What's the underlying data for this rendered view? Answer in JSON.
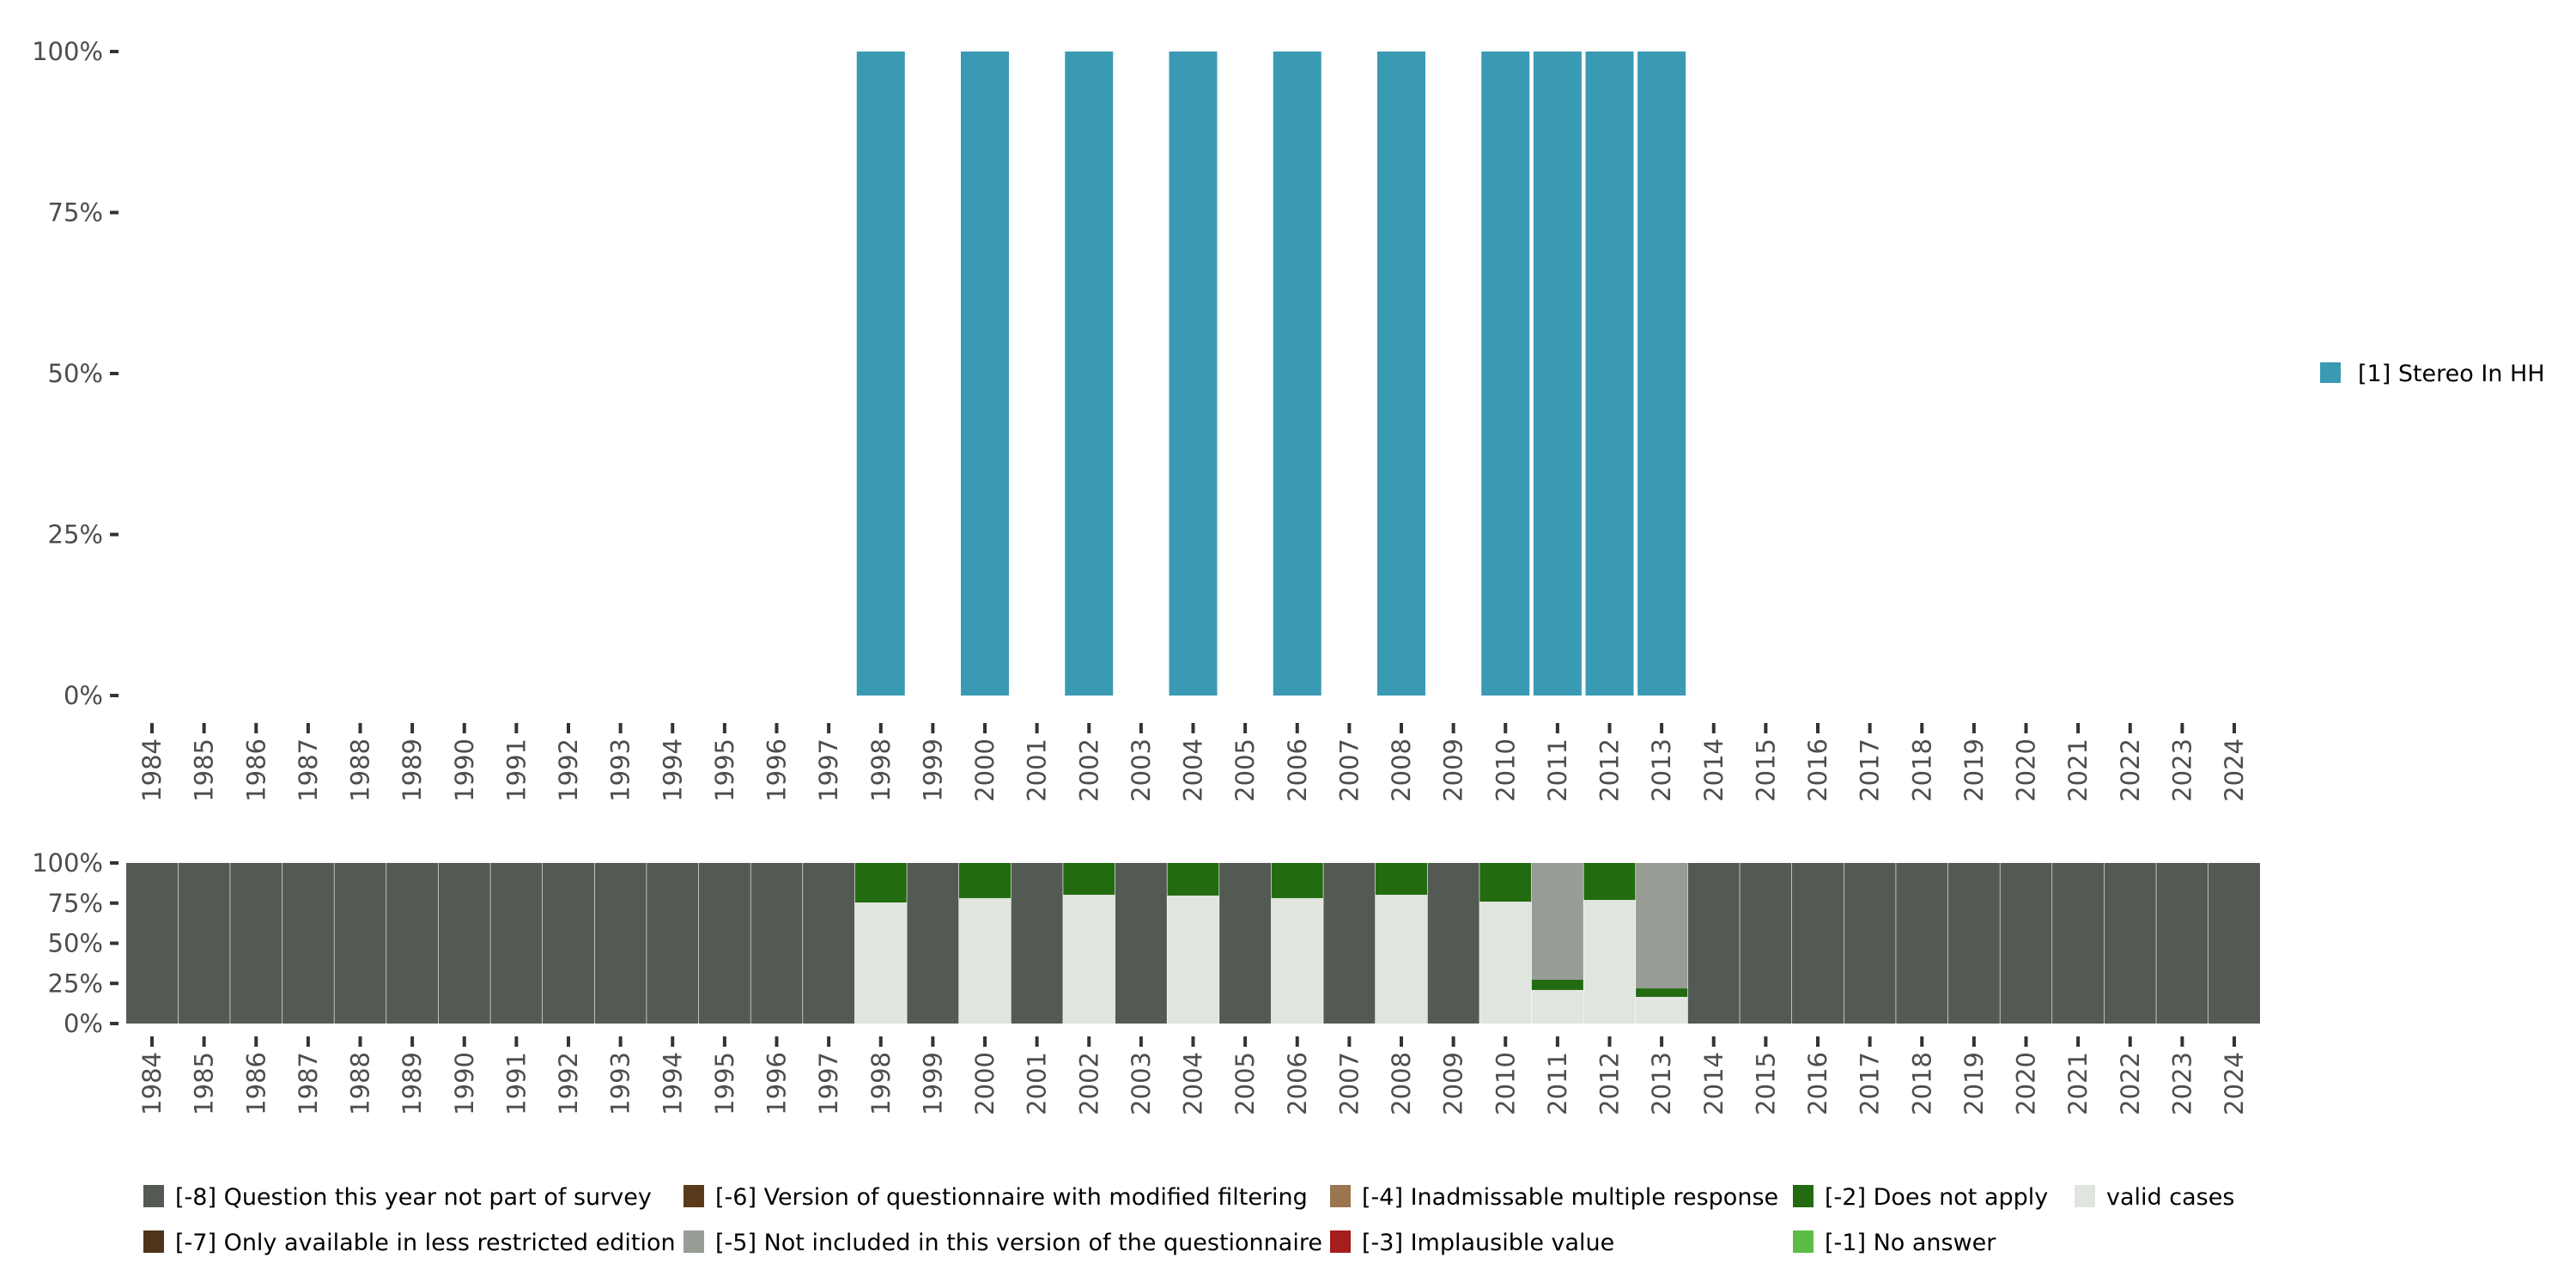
{
  "chart_data": [
    {
      "type": "bar",
      "title": "",
      "xlabel": "",
      "ylabel": "",
      "ylim": [
        0,
        100
      ],
      "y_ticks": [
        "0%",
        "25%",
        "50%",
        "75%",
        "100%"
      ],
      "categories": [
        "1984",
        "1985",
        "1986",
        "1987",
        "1988",
        "1989",
        "1990",
        "1991",
        "1992",
        "1993",
        "1994",
        "1995",
        "1996",
        "1997",
        "1998",
        "1999",
        "2000",
        "2001",
        "2002",
        "2003",
        "2004",
        "2005",
        "2006",
        "2007",
        "2008",
        "2009",
        "2010",
        "2011",
        "2012",
        "2013",
        "2014",
        "2015",
        "2016",
        "2017",
        "2018",
        "2019",
        "2020",
        "2021",
        "2022",
        "2023",
        "2024"
      ],
      "series": [
        {
          "name": "[1] Stereo In HH",
          "color": "#3a9ab3",
          "values": {
            "1998": 100,
            "2000": 100,
            "2002": 100,
            "2004": 100,
            "2006": 100,
            "2008": 100,
            "2010": 100,
            "2011": 100,
            "2012": 100,
            "2013": 100
          }
        }
      ],
      "legend_position": "right"
    },
    {
      "type": "bar",
      "stacked": true,
      "ylim": [
        0,
        100
      ],
      "y_ticks": [
        "0%",
        "25%",
        "50%",
        "75%",
        "100%"
      ],
      "categories": [
        "1984",
        "1985",
        "1986",
        "1987",
        "1988",
        "1989",
        "1990",
        "1991",
        "1992",
        "1993",
        "1994",
        "1995",
        "1996",
        "1997",
        "1998",
        "1999",
        "2000",
        "2001",
        "2002",
        "2003",
        "2004",
        "2005",
        "2006",
        "2007",
        "2008",
        "2009",
        "2010",
        "2011",
        "2012",
        "2013",
        "2014",
        "2015",
        "2016",
        "2017",
        "2018",
        "2019",
        "2020",
        "2021",
        "2022",
        "2023",
        "2024"
      ],
      "stack_order": [
        "valid",
        "-2",
        "-5",
        "-8"
      ],
      "values": {
        "1998": {
          "valid": 75.4,
          "-2": 24.6
        },
        "2000": {
          "valid": 78.1,
          "-2": 21.9
        },
        "2002": {
          "valid": 80.2,
          "-2": 19.8
        },
        "2004": {
          "valid": 79.7,
          "-2": 20.3
        },
        "2006": {
          "valid": 78.1,
          "-2": 21.9
        },
        "2008": {
          "valid": 80.2,
          "-2": 19.8
        },
        "2010": {
          "valid": 75.9,
          "-2": 24.1
        },
        "2011": {
          "valid": 20.9,
          "-2": 6.4,
          "-5": 72.7
        },
        "2012": {
          "valid": 77.0,
          "-2": 23.0
        },
        "2013": {
          "valid": 16.6,
          "-2": 5.3,
          "-5": 78.1
        },
        "default": {
          "-8": 100
        }
      },
      "legend": [
        {
          "key": "-8",
          "label": "[-8] Question this year not part of survey",
          "color": "#535a53"
        },
        {
          "key": "-7",
          "label": "[-7] Only available in less restricted edition",
          "color": "#4f331a"
        },
        {
          "key": "-6",
          "label": "[-6] Version of questionnaire with modified filtering",
          "color": "#5a3a1a"
        },
        {
          "key": "-5",
          "label": "[-5] Not included in this version of the questionnaire",
          "color": "#979c94"
        },
        {
          "key": "-4",
          "label": "[-4] Inadmissable multiple response",
          "color": "#9a7550"
        },
        {
          "key": "-3",
          "label": "[-3] Implausible value",
          "color": "#a51d1d"
        },
        {
          "key": "-2",
          "label": "[-2] Does not apply",
          "color": "#226b10"
        },
        {
          "key": "-1",
          "label": "[-1] No answer",
          "color": "#5bbd45"
        },
        {
          "key": "valid",
          "label": "valid cases",
          "color": "#e0e5e0"
        }
      ],
      "legend_position": "bottom"
    }
  ]
}
